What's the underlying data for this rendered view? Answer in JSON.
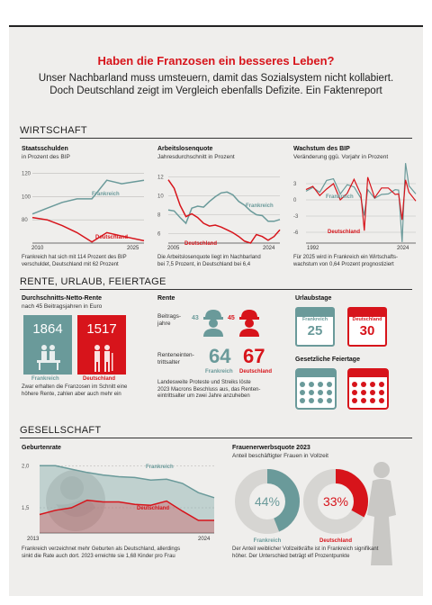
{
  "title": "Haben die Franzosen ein besseres Leben?",
  "subtitle_line1": "Unser Nachbarland muss umsteuern, damit das Sozialsystem nicht kollabiert.",
  "subtitle_line2": "Doch Deutschland zeigt im Vergleich ebenfalls Defizite. Ein Faktenreport",
  "colors": {
    "frankreich": "#6a9a9a",
    "deutschland": "#d7141b"
  },
  "sections": {
    "wirtschaft": "WIRTSCHAFT",
    "rente": "RENTE, URLAUB, FEIERTAGE",
    "gesellschaft": "GESELLSCHAFT"
  },
  "labels": {
    "frankreich": "Frankreich",
    "deutschland": "Deutschland"
  },
  "staatsschulden": {
    "title": "Staatsschulden",
    "subtitle": "in Prozent des BIP",
    "note_line1": "Frankreich hat sich mit 114 Prozent des BIP",
    "note_line2": "verschuldet, Deutschland mit 62 Prozent",
    "chart_data": {
      "type": "line",
      "title": "Staatsschulden",
      "x": [
        2010,
        2012,
        2014,
        2016,
        2018,
        2020,
        2022,
        2025
      ],
      "series": [
        {
          "name": "Frankreich",
          "values": [
            85,
            90,
            95,
            98,
            98,
            114,
            111,
            114
          ]
        },
        {
          "name": "Deutschland",
          "values": [
            82,
            80,
            75,
            69,
            61,
            69,
            66,
            62
          ]
        }
      ],
      "yticks": [
        "120",
        "100",
        "80"
      ],
      "xticks": [
        "2010",
        "2025"
      ],
      "ylim": [
        60,
        125
      ],
      "xlim": [
        2010,
        2025
      ]
    }
  },
  "arbeitslosen": {
    "title": "Arbeitslosenquote",
    "subtitle": "Jahresdurchschnitt in Prozent",
    "note_line1": "Die Arbeitslosenquote liegt im Nachbarland",
    "note_line2": "bei 7,5 Prozent, in Deutschland bei 6,4",
    "chart_data": {
      "type": "line",
      "title": "Arbeitslosenquote",
      "x": [
        2005,
        2006,
        2007,
        2008,
        2009,
        2010,
        2011,
        2012,
        2013,
        2014,
        2015,
        2016,
        2017,
        2018,
        2019,
        2020,
        2021,
        2022,
        2023,
        2024
      ],
      "series": [
        {
          "name": "Frankreich",
          "values": [
            8.5,
            8.4,
            7.7,
            7.1,
            8.7,
            8.9,
            8.8,
            9.4,
            9.9,
            10.3,
            10.4,
            10.1,
            9.4,
            9.0,
            8.4,
            8.0,
            7.9,
            7.3,
            7.3,
            7.5
          ]
        },
        {
          "name": "Deutschland",
          "values": [
            11.7,
            10.8,
            9.0,
            7.8,
            8.1,
            7.7,
            7.1,
            6.8,
            6.9,
            6.7,
            6.4,
            6.1,
            5.7,
            5.2,
            5.0,
            5.9,
            5.7,
            5.3,
            5.7,
            6.4
          ]
        }
      ],
      "yticks": [
        "12",
        "10",
        "8",
        "6"
      ],
      "xticks": [
        "2005",
        "2024"
      ],
      "ylim": [
        5,
        13
      ],
      "xlim": [
        2005,
        2024
      ]
    }
  },
  "wachstum": {
    "title": "Wachstum des BIP",
    "subtitle": "Veränderung ggü. Vorjahr in Prozent",
    "note_line1": "Für 2025 wird in Frankreich ein Wirtschafts-",
    "note_line2": "wachstum von 0,64 Prozent prognostiziert",
    "chart_data": {
      "type": "line",
      "title": "Wachstum des BIP",
      "x": [
        1992,
        1994,
        1996,
        1998,
        2000,
        2002,
        2004,
        2006,
        2008,
        2009,
        2010,
        2012,
        2014,
        2016,
        2018,
        2019,
        2020,
        2021,
        2022,
        2024
      ],
      "series": [
        {
          "name": "Frankreich",
          "values": [
            1.6,
            2.3,
            1.4,
            3.6,
            3.9,
            1.1,
            2.8,
            2.4,
            0.3,
            -2.9,
            1.9,
            0.3,
            1.0,
            1.1,
            1.9,
            1.8,
            -7.8,
            6.8,
            2.6,
            1.1
          ]
        },
        {
          "name": "Deutschland",
          "values": [
            1.9,
            2.5,
            0.8,
            2.0,
            3.0,
            0.0,
            1.2,
            3.8,
            1.0,
            -5.7,
            4.2,
            0.4,
            2.2,
            2.2,
            1.0,
            1.1,
            -3.7,
            3.7,
            1.4,
            -0.2
          ]
        }
      ],
      "yticks": [
        "3",
        "0",
        "-3",
        "-6"
      ],
      "xticks": [
        "1992",
        "2024"
      ],
      "ylim": [
        -8,
        6
      ],
      "xlim": [
        1992,
        2024
      ]
    }
  },
  "rente": {
    "title": "Durchschnitts-Netto-Rente",
    "subtitle": "nach 45 Beitragsjahren in Euro",
    "fr_value": "1864",
    "de_value": "1517",
    "note_line1": "Zwar erhalten die Franzosen im Schnitt eine",
    "note_line2": "höhere Rente, zahlen aber auch mehr ein"
  },
  "rente_alter": {
    "title": "Rente",
    "beitrag_label_line1": "Beitrags-",
    "beitrag_label_line2": "jahre",
    "fr_beitrag": "43",
    "de_beitrag": "45",
    "eintritt_label_line1": "Renteneinten-",
    "eintritt_label_line2": "trittsalter",
    "fr_alter": "64",
    "de_alter": "67",
    "note_line1": "Landesweite Proteste und Streiks löste",
    "note_line2": "2023 Macrons Beschluss aus, das Renten-",
    "note_line3": "eintrittsalter um zwei Jahre anzuheben"
  },
  "urlaub": {
    "title": "Urlaubstage",
    "fr_value": "25",
    "de_value": "30",
    "feiertage_title": "Gesetzliche Feiertage"
  },
  "geburten": {
    "title": "Geburtenrate",
    "note_line1": "Frankreich verzeichnet mehr Geburten als Deutschland, allerdings",
    "note_line2": "sinkt die Rate auch dort. 2023 erreichte sie 1,68 Kinder pro Frau",
    "chart_data": {
      "type": "area",
      "title": "Geburtenrate",
      "x": [
        2013,
        2014,
        2015,
        2016,
        2017,
        2018,
        2019,
        2020,
        2021,
        2022,
        2023,
        2024
      ],
      "series": [
        {
          "name": "Frankreich",
          "values": [
            2.0,
            2.0,
            1.96,
            1.92,
            1.89,
            1.87,
            1.86,
            1.83,
            1.84,
            1.79,
            1.68,
            1.62
          ]
        },
        {
          "name": "Deutschland",
          "values": [
            1.42,
            1.47,
            1.5,
            1.59,
            1.57,
            1.57,
            1.54,
            1.53,
            1.58,
            1.46,
            1.35,
            1.35
          ]
        }
      ],
      "yticks": [
        "2,0",
        "1,5"
      ],
      "xticks": [
        "2013",
        "2024"
      ],
      "ylim": [
        1.2,
        2.1
      ],
      "xlim": [
        2013,
        2024
      ]
    }
  },
  "frauen": {
    "title": "Frauenerwerbsquote 2023",
    "subtitle": "Anteil beschäftigter Frauen in Vollzeit",
    "fr_value": "44%",
    "de_value": "33%",
    "note_line1": "Der Anteil weiblicher Vollzeitkräfte ist in Frankreich signifikant",
    "note_line2": "höher. Der Unterschied beträgt elf Prozentpunkte",
    "chart_data": {
      "type": "pie",
      "title": "Frauenerwerbsquote 2023",
      "categories": [
        "Frankreich",
        "Deutschland"
      ],
      "values": [
        44,
        33
      ]
    }
  }
}
